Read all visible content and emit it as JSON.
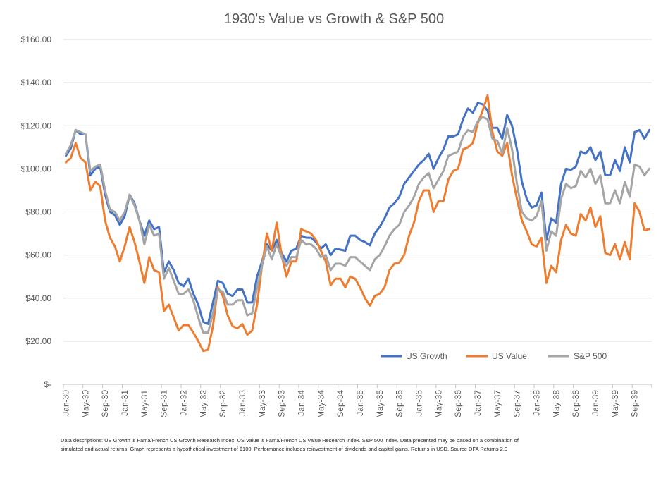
{
  "chart_data": {
    "type": "line",
    "title": "1930's Value vs Growth & S&P 500",
    "ylim": [
      0,
      160
    ],
    "yticks": [
      {
        "value": 0,
        "label": "$-"
      },
      {
        "value": 20,
        "label": "$20.00"
      },
      {
        "value": 40,
        "label": "$40.00"
      },
      {
        "value": 60,
        "label": "$60.00"
      },
      {
        "value": 80,
        "label": "$80.00"
      },
      {
        "value": 100,
        "label": "$100.00"
      },
      {
        "value": 120,
        "label": "$120.00"
      },
      {
        "value": 140,
        "label": "$140.00"
      },
      {
        "value": 160,
        "label": "$160.00"
      }
    ],
    "xticks": [
      {
        "index": 0,
        "label": "Jan-30"
      },
      {
        "index": 4,
        "label": "May-30"
      },
      {
        "index": 8,
        "label": "Sep-30"
      },
      {
        "index": 12,
        "label": "Jan-31"
      },
      {
        "index": 16,
        "label": "May-31"
      },
      {
        "index": 20,
        "label": "Sep-31"
      },
      {
        "index": 24,
        "label": "Jan-32"
      },
      {
        "index": 28,
        "label": "May-32"
      },
      {
        "index": 32,
        "label": "Sep-32"
      },
      {
        "index": 36,
        "label": "Jan-33"
      },
      {
        "index": 40,
        "label": "May-33"
      },
      {
        "index": 44,
        "label": "Sep-33"
      },
      {
        "index": 48,
        "label": "Jan-34"
      },
      {
        "index": 52,
        "label": "May-34"
      },
      {
        "index": 56,
        "label": "Sep-34"
      },
      {
        "index": 60,
        "label": "Jan-35"
      },
      {
        "index": 64,
        "label": "May-35"
      },
      {
        "index": 68,
        "label": "Sep-35"
      },
      {
        "index": 72,
        "label": "Jan-36"
      },
      {
        "index": 76,
        "label": "May-36"
      },
      {
        "index": 80,
        "label": "Sep-36"
      },
      {
        "index": 84,
        "label": "Jan-37"
      },
      {
        "index": 88,
        "label": "May-37"
      },
      {
        "index": 92,
        "label": "Sep-37"
      },
      {
        "index": 96,
        "label": "Jan-38"
      },
      {
        "index": 100,
        "label": "May-38"
      },
      {
        "index": 104,
        "label": "Sep-38"
      },
      {
        "index": 108,
        "label": "Jan-39"
      },
      {
        "index": 112,
        "label": "May-39"
      },
      {
        "index": 116,
        "label": "Sep-39"
      }
    ],
    "x_count": 120,
    "grid": true,
    "legend_position": "bottom-right",
    "series": [
      {
        "name": "US Growth",
        "color": "#4472C4",
        "values": [
          106,
          109.5,
          118,
          116,
          116,
          97,
          100,
          101,
          88,
          80,
          78.5,
          74,
          78,
          88,
          84,
          76,
          69,
          76,
          72,
          73,
          52,
          57,
          53,
          47,
          45.5,
          49,
          42,
          37,
          29,
          28,
          38,
          48,
          47,
          42,
          41,
          44,
          44,
          38,
          38,
          50,
          57,
          65,
          62,
          67,
          61,
          57,
          62,
          63,
          69,
          68,
          68,
          66,
          63,
          65,
          60,
          63,
          62.5,
          62,
          69,
          69,
          67,
          66,
          64.5,
          70,
          73,
          77,
          82,
          84,
          87,
          93,
          96,
          99,
          102,
          104,
          107,
          100,
          105,
          109,
          115,
          115,
          116,
          123,
          128,
          126,
          130.5,
          130,
          127,
          119,
          119,
          114,
          125,
          120,
          109,
          94,
          86,
          82,
          83,
          89,
          67,
          77,
          75,
          93,
          100,
          99.5,
          101,
          108,
          107,
          110,
          104,
          108,
          97,
          97,
          104,
          99,
          110,
          103,
          117,
          118,
          114,
          118
        ]
      },
      {
        "name": "US Value",
        "color": "#ED7D31",
        "values": [
          103,
          105,
          112,
          105,
          103,
          90,
          94,
          92,
          76,
          68,
          64,
          57,
          64,
          73,
          66,
          57,
          47,
          59,
          53,
          52,
          34,
          37,
          31,
          25,
          27.5,
          27.5,
          24,
          20,
          15.5,
          16,
          27,
          45,
          41,
          32,
          27,
          26,
          28,
          23,
          25,
          37,
          55,
          70,
          62,
          75,
          60,
          50,
          57,
          57,
          72,
          71,
          70,
          67,
          62,
          57,
          46,
          49,
          49,
          45,
          50,
          49,
          45,
          40,
          36.5,
          41,
          42,
          45,
          53,
          56,
          56.5,
          60,
          69,
          75,
          85,
          90,
          90,
          80,
          85,
          85,
          95,
          99,
          100,
          109,
          110,
          112,
          121,
          127,
          134,
          117,
          108,
          106,
          112,
          97,
          86,
          76,
          71,
          65,
          64,
          68,
          47,
          55,
          52,
          67,
          74,
          70,
          69,
          79,
          76,
          82,
          73,
          78,
          61,
          60,
          65,
          58,
          66,
          58,
          84,
          80,
          71.5,
          72
        ]
      },
      {
        "name": "S&P 500",
        "color": "#A5A5A5",
        "values": [
          107,
          111,
          118,
          117,
          116,
          99,
          101,
          102,
          90,
          81,
          80,
          76,
          80,
          88,
          83,
          76,
          65,
          74,
          69,
          70,
          49,
          54,
          48,
          42,
          42,
          44,
          39,
          31,
          24,
          24,
          33,
          44,
          43,
          37,
          37,
          39,
          39,
          32,
          33,
          45,
          55,
          64,
          58,
          65,
          59,
          55,
          59,
          59,
          67,
          65,
          65,
          63,
          59,
          60,
          53,
          56,
          56,
          55,
          59,
          59,
          57,
          55,
          53,
          58,
          60,
          64,
          69,
          72,
          74,
          80,
          83,
          87,
          93,
          96,
          98,
          91,
          95,
          99,
          106,
          107,
          108,
          115,
          118,
          117,
          122,
          124,
          123,
          114,
          113,
          107,
          119,
          109,
          93,
          80,
          77,
          76,
          78,
          85,
          62,
          71,
          69,
          86,
          93,
          91,
          92,
          99,
          96,
          100,
          93,
          97,
          84,
          84,
          90,
          84,
          94,
          87,
          102,
          101,
          97,
          100
        ]
      }
    ],
    "footnote": [
      "Data descriptions: US Growth is Fama/French US Growth Research Index. US Value is Fama/French US Value Research Index. S&P 500 Index. Data presented may be based on a combination of",
      "simulated and actual returns. Graph represents a hypothetical investment of $100, Performance includes reinvestment of dividends and capital gains. Returns in USD. Source DFA Returns 2.0"
    ]
  }
}
